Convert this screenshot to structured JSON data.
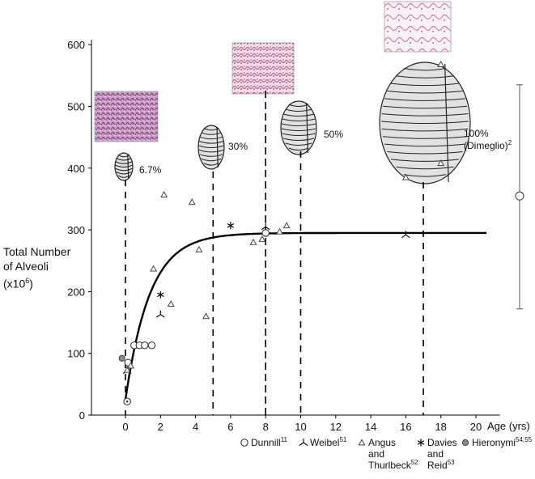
{
  "chart_data": {
    "type": "scatter",
    "ylabel_lines": [
      "Total Number",
      "of Alveoli"
    ],
    "ylabel_unit": "(x10",
    "ylabel_unit_sup": "6",
    "ylabel_unit_close": ")",
    "xlabel": "Age (yrs)",
    "xlim": [
      -2,
      21
    ],
    "ylim": [
      0,
      600
    ],
    "x_ticks": [
      0,
      2,
      4,
      6,
      8,
      10,
      12,
      14,
      16,
      18,
      20
    ],
    "y_ticks": [
      0,
      100,
      200,
      300,
      400,
      500,
      600
    ],
    "fit_curve": {
      "plateau": 295,
      "start": 25,
      "rate": 0.72
    },
    "series": [
      {
        "name": "Dunnill",
        "ref": "11",
        "marker": "circle",
        "points": [
          [
            0.1,
            22
          ],
          [
            0.15,
            85
          ],
          [
            0.5,
            113
          ],
          [
            0.8,
            113
          ],
          [
            1.1,
            113
          ],
          [
            1.5,
            113
          ],
          [
            8.0,
            295
          ]
        ]
      },
      {
        "name": "Weibel",
        "ref": "51",
        "marker": "weibel",
        "points": [
          [
            0.1,
            72
          ],
          [
            2.0,
            163
          ],
          [
            8.0,
            305
          ],
          [
            16.0,
            292
          ]
        ]
      },
      {
        "name": "Angus and Thurlbeck",
        "ref": "52",
        "marker": "triangle",
        "points": [
          [
            0.1,
            73
          ],
          [
            0.3,
            80
          ],
          [
            1.6,
            237
          ],
          [
            2.2,
            357
          ],
          [
            2.6,
            180
          ],
          [
            3.8,
            345
          ],
          [
            4.2,
            268
          ],
          [
            4.6,
            160
          ],
          [
            7.3,
            280
          ],
          [
            7.8,
            285
          ],
          [
            8.8,
            297
          ],
          [
            9.2,
            307
          ],
          [
            16.0,
            385
          ],
          [
            18.0,
            568
          ],
          [
            18.0,
            408
          ]
        ]
      },
      {
        "name": "Davies and Reid",
        "ref": "53",
        "marker": "asterisk",
        "points": [
          [
            2.0,
            195
          ],
          [
            6.0,
            307
          ]
        ]
      },
      {
        "name": "Hieronymi",
        "ref": "54,55",
        "marker": "dot",
        "points": [
          [
            -0.2,
            92
          ]
        ]
      }
    ],
    "markers": [
      {
        "x": 0,
        "label": "6.7%"
      },
      {
        "x": 5,
        "label": "30%"
      },
      {
        "x": 8,
        "label": ""
      },
      {
        "x": 10,
        "label": "50%"
      },
      {
        "x": 17,
        "label": "100%",
        "label2": "(Dimeglio)",
        "label2_sup": "2"
      }
    ],
    "adult_range": {
      "mean": 355,
      "low": 172,
      "high": 535
    },
    "legend_position": "bottom"
  }
}
